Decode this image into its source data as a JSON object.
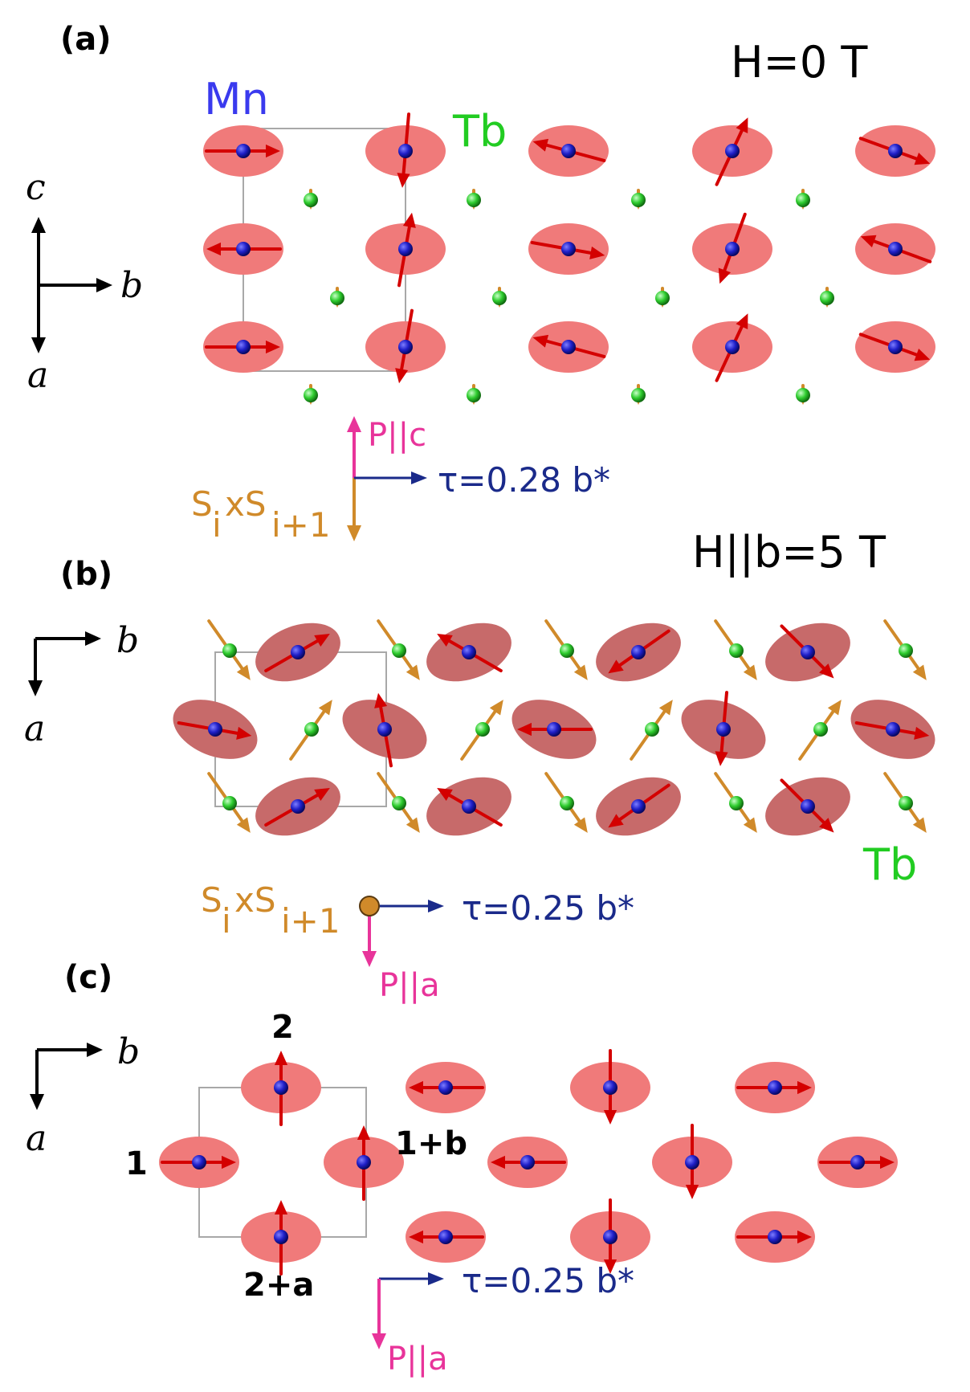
{
  "colors": {
    "ellipse_a": "#f07a7a",
    "ellipse_b": "#c76a6a",
    "mn": "#1f1fc8",
    "tb": "#2ecc2e",
    "spin": "#d40000",
    "cross": "#d08a2a",
    "polar": "#e8349a",
    "tau": "#1a2a8a",
    "mn_label": "#3a3aee",
    "tb_label": "#22cc22",
    "cell": "#a8a8a8"
  },
  "panels": [
    {
      "label": "(a)",
      "field": "H=0 T",
      "mn": "Mn",
      "tb": "Tb",
      "axes": {
        "up": "c",
        "right": "b",
        "down": "a"
      },
      "vectors": {
        "P": "P||c",
        "tau": "τ=0.28 b*",
        "S": "S",
        "S_sub1": "i",
        "S_x": "xS",
        "S_sub2": "i+1"
      }
    },
    {
      "label": "(b)",
      "field": "H||b=5 T",
      "tb": "Tb",
      "axes": {
        "right": "b",
        "down": "a"
      },
      "vectors": {
        "P": "P||a",
        "tau": "τ=0.25 b*",
        "S": "S",
        "S_sub1": "i",
        "S_x": "xS",
        "S_sub2": "i+1"
      }
    },
    {
      "label": "(c)",
      "axes": {
        "right": "b",
        "down": "a"
      },
      "sites": {
        "s1": "1",
        "s2": "2",
        "s1b": "1+b",
        "s2a": "2+a"
      },
      "vectors": {
        "P": "P||a",
        "tau": "τ=0.25 b*"
      }
    }
  ]
}
